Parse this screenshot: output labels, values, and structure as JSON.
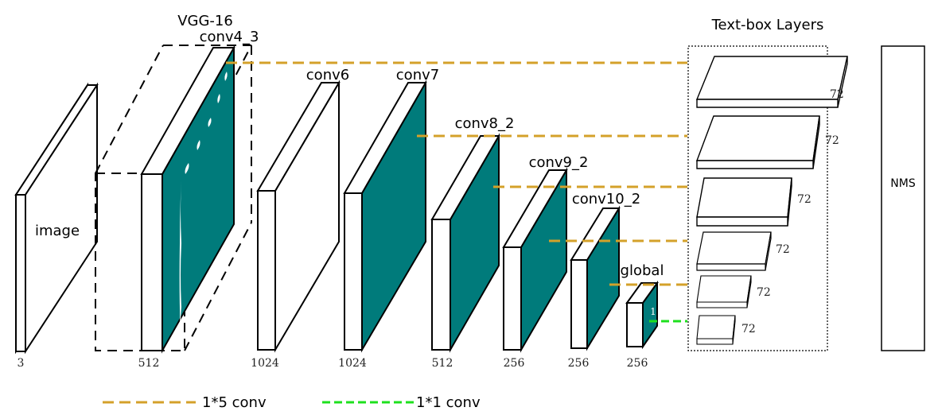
{
  "titles": {
    "vgg": "VGG-16",
    "textbox": "Text-box Layers",
    "nms": "NMS"
  },
  "layers": {
    "image": {
      "label": "image",
      "depth": "3"
    },
    "conv4_3": {
      "label": "conv4_3",
      "depth": "512"
    },
    "conv6": {
      "label": "conv6",
      "depth": "1024"
    },
    "conv7": {
      "label": "conv7",
      "depth": "1024"
    },
    "conv8_2": {
      "label": "conv8_2",
      "depth": "512"
    },
    "conv9_2": {
      "label": "conv9_2",
      "depth": "256"
    },
    "conv10_2": {
      "label": "conv10_2",
      "depth": "256"
    },
    "global": {
      "label": "global",
      "depth": "256",
      "inner": "1"
    }
  },
  "textbox_channels": [
    "72",
    "72",
    "72",
    "72",
    "72",
    "72"
  ],
  "legend": {
    "conv5": "1*5 conv",
    "conv1": "1*1 conv"
  },
  "colors": {
    "teal": "#007b7b",
    "orange_dash": "#d4a12a",
    "green_dash": "#1ee01e"
  }
}
